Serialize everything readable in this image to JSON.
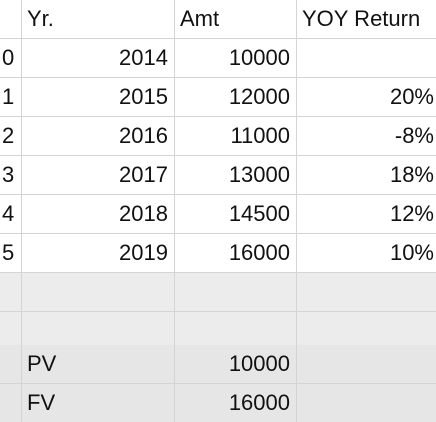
{
  "headers": {
    "year": "Yr.",
    "amount": "Amt",
    "yoy": "YOY Return"
  },
  "rows": [
    {
      "idx": "0",
      "year": "2014",
      "amount": "10000",
      "yoy": ""
    },
    {
      "idx": "1",
      "year": "2015",
      "amount": "12000",
      "yoy": "20%"
    },
    {
      "idx": "2",
      "year": "2016",
      "amount": "11000",
      "yoy": "-8%"
    },
    {
      "idx": "3",
      "year": "2017",
      "amount": "13000",
      "yoy": "18%"
    },
    {
      "idx": "4",
      "year": "2018",
      "amount": "14500",
      "yoy": "12%"
    },
    {
      "idx": "5",
      "year": "2019",
      "amount": "16000",
      "yoy": "10%"
    }
  ],
  "summary": {
    "pv_label": "PV",
    "pv_value": "10000",
    "fv_label": "FV",
    "fv_value": "16000"
  }
}
